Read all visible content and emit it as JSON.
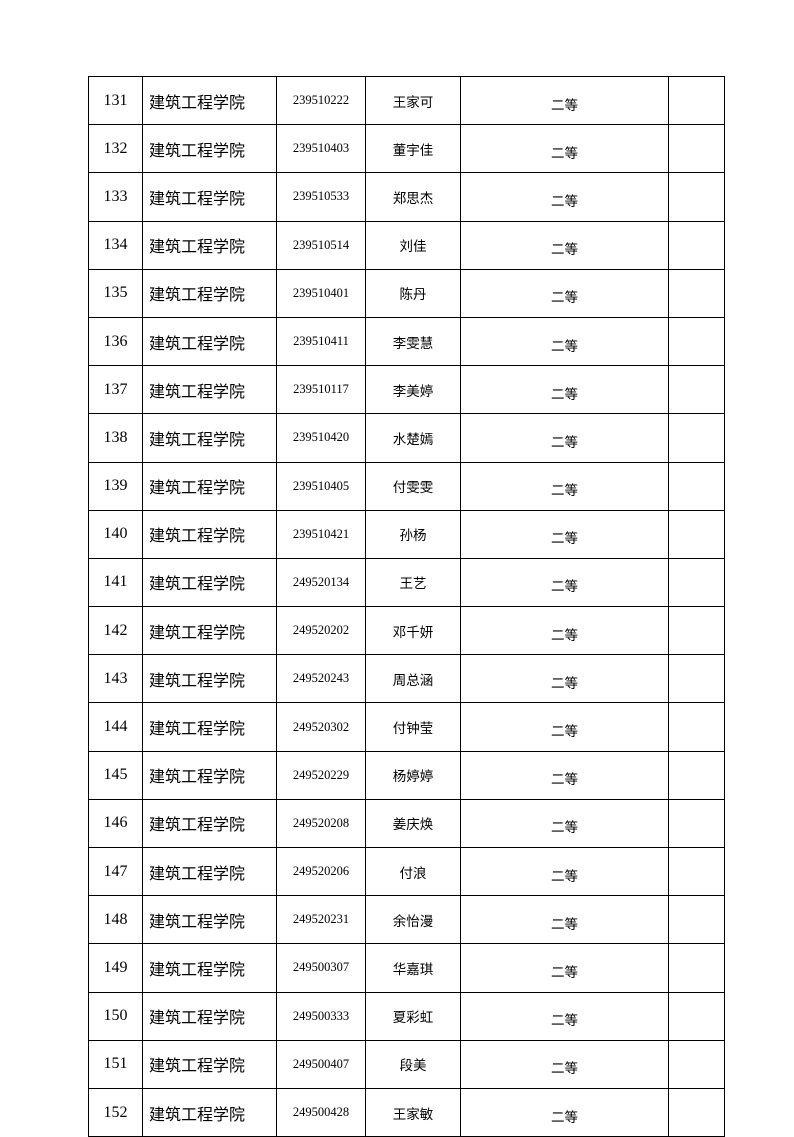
{
  "rows": [
    {
      "no": "131",
      "college": "建筑工程学院",
      "id": "239510222",
      "name": "王家可",
      "grade": "二等",
      "note": ""
    },
    {
      "no": "132",
      "college": "建筑工程学院",
      "id": "239510403",
      "name": "董宇佳",
      "grade": "二等",
      "note": ""
    },
    {
      "no": "133",
      "college": "建筑工程学院",
      "id": "239510533",
      "name": "郑思杰",
      "grade": "二等",
      "note": ""
    },
    {
      "no": "134",
      "college": "建筑工程学院",
      "id": "239510514",
      "name": "刘佳",
      "grade": "二等",
      "note": ""
    },
    {
      "no": "135",
      "college": "建筑工程学院",
      "id": "239510401",
      "name": "陈丹",
      "grade": "二等",
      "note": ""
    },
    {
      "no": "136",
      "college": "建筑工程学院",
      "id": "239510411",
      "name": "李雯慧",
      "grade": "二等",
      "note": ""
    },
    {
      "no": "137",
      "college": "建筑工程学院",
      "id": "239510117",
      "name": "李美婷",
      "grade": "二等",
      "note": ""
    },
    {
      "no": "138",
      "college": "建筑工程学院",
      "id": "239510420",
      "name": "水楚嫣",
      "grade": "二等",
      "note": ""
    },
    {
      "no": "139",
      "college": "建筑工程学院",
      "id": "239510405",
      "name": "付雯雯",
      "grade": "二等",
      "note": ""
    },
    {
      "no": "140",
      "college": "建筑工程学院",
      "id": "239510421",
      "name": "孙杨",
      "grade": "二等",
      "note": ""
    },
    {
      "no": "141",
      "college": "建筑工程学院",
      "id": "249520134",
      "name": "王艺",
      "grade": "二等",
      "note": ""
    },
    {
      "no": "142",
      "college": "建筑工程学院",
      "id": "249520202",
      "name": "邓千妍",
      "grade": "二等",
      "note": ""
    },
    {
      "no": "143",
      "college": "建筑工程学院",
      "id": "249520243",
      "name": "周总涵",
      "grade": "二等",
      "note": ""
    },
    {
      "no": "144",
      "college": "建筑工程学院",
      "id": "249520302",
      "name": "付钟莹",
      "grade": "二等",
      "note": ""
    },
    {
      "no": "145",
      "college": "建筑工程学院",
      "id": "249520229",
      "name": "杨婷婷",
      "grade": "二等",
      "note": ""
    },
    {
      "no": "146",
      "college": "建筑工程学院",
      "id": "249520208",
      "name": "姜庆焕",
      "grade": "二等",
      "note": ""
    },
    {
      "no": "147",
      "college": "建筑工程学院",
      "id": "249520206",
      "name": "付浪",
      "grade": "二等",
      "note": ""
    },
    {
      "no": "148",
      "college": "建筑工程学院",
      "id": "249520231",
      "name": "余怡漫",
      "grade": "二等",
      "note": ""
    },
    {
      "no": "149",
      "college": "建筑工程学院",
      "id": "249500307",
      "name": "华嘉琪",
      "grade": "二等",
      "note": ""
    },
    {
      "no": "150",
      "college": "建筑工程学院",
      "id": "249500333",
      "name": "夏彩虹",
      "grade": "二等",
      "note": ""
    },
    {
      "no": "151",
      "college": "建筑工程学院",
      "id": "249500407",
      "name": "段美",
      "grade": "二等",
      "note": ""
    },
    {
      "no": "152",
      "college": "建筑工程学院",
      "id": "249500428",
      "name": "王家敏",
      "grade": "二等",
      "note": ""
    }
  ]
}
